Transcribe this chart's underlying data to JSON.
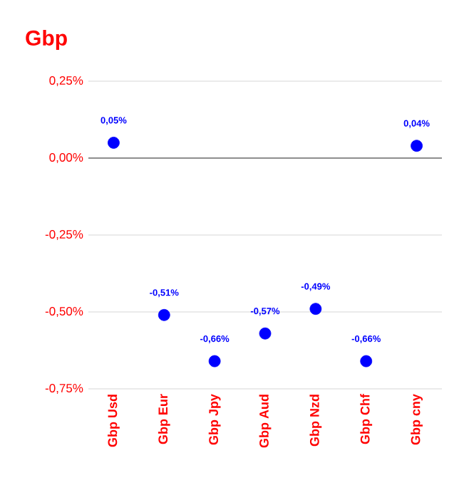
{
  "chart_data": {
    "type": "scatter",
    "title": "Gbp",
    "categories": [
      "Gbp Usd",
      "Gbp Eur",
      "Gbp Jpy",
      "Gbp Aud",
      "Gbp Nzd",
      "Gbp Chf",
      "Gbp cny"
    ],
    "series": [
      {
        "color": "#0000ff",
        "values": [
          0.05,
          -0.51,
          -0.66,
          -0.57,
          -0.49,
          -0.66,
          0.04
        ],
        "value_labels": [
          "0,05%",
          "-0,51%",
          "-0,66%",
          "-0,57%",
          "-0,49%",
          "-0,66%",
          "0,04%"
        ]
      }
    ],
    "ylim": [
      -0.75,
      0.25
    ],
    "yticks": [
      {
        "value": 0.25,
        "label": "0,25%"
      },
      {
        "value": 0,
        "label": "0,00%"
      },
      {
        "value": -0.25,
        "label": "-0,25%"
      },
      {
        "value": -0.5,
        "label": "-0,50%"
      },
      {
        "value": -0.75,
        "label": "-0,75%"
      }
    ],
    "ref_lines": [
      {
        "axis": "y",
        "value": 0,
        "color": "#000000"
      }
    ],
    "grid": "y",
    "marker": "circle"
  }
}
